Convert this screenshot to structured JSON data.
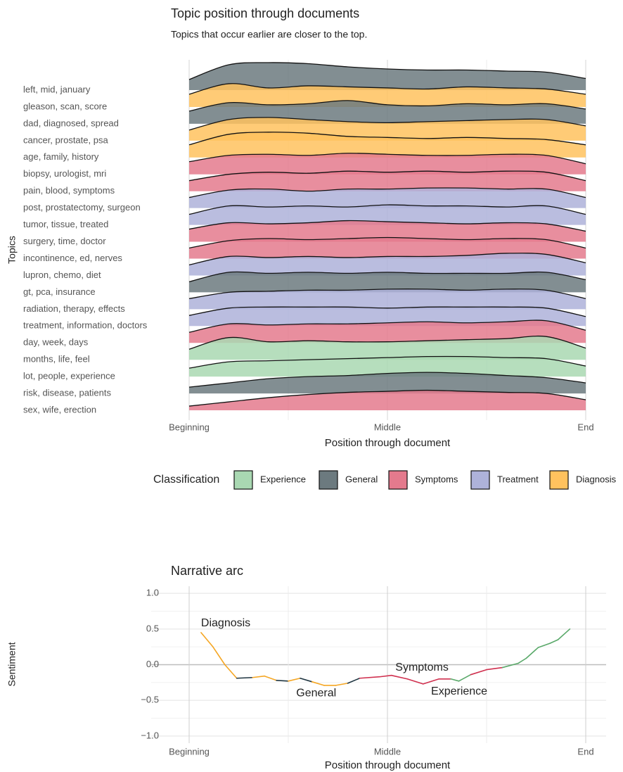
{
  "chart_data": [
    {
      "type": "ridgeline",
      "title": "Topic position through documents",
      "subtitle": "Topics that occur earlier are closer to the top.",
      "y_label": "Topics",
      "x_label": "Position through document",
      "xlim": [
        0,
        1
      ],
      "xticks": [
        {
          "value": 0,
          "label": "Beginning"
        },
        {
          "value": 0.5,
          "label": "Middle"
        },
        {
          "value": 1,
          "label": "End"
        }
      ],
      "legend_title": "Classification",
      "classes": [
        {
          "name": "Experience",
          "color": "#a9d8b2"
        },
        {
          "name": "General",
          "color": "#6c7a7f"
        },
        {
          "name": "Symptoms",
          "color": "#e47a8d"
        },
        {
          "name": "Treatment",
          "color": "#aeb2d9"
        },
        {
          "name": "Diagnosis",
          "color": "#ffc25e"
        }
      ],
      "x": [
        0,
        0.1,
        0.2,
        0.3,
        0.4,
        0.5,
        0.6,
        0.7,
        0.8,
        0.9,
        1
      ],
      "series": [
        {
          "name": "left, mid, january",
          "classification": "General",
          "values": [
            0.5,
            1.2,
            1.3,
            1.25,
            1.1,
            1.0,
            0.95,
            0.95,
            0.9,
            0.85,
            0.55
          ]
        },
        {
          "name": "gleason, scan, score",
          "classification": "Diagnosis",
          "values": [
            0.6,
            1.1,
            0.9,
            1.0,
            0.95,
            0.9,
            0.85,
            0.95,
            0.9,
            0.85,
            0.6
          ]
        },
        {
          "name": "dad, diagnosed, spread",
          "classification": "General",
          "values": [
            0.6,
            1.0,
            0.9,
            0.95,
            1.1,
            0.9,
            0.85,
            0.95,
            0.9,
            0.95,
            0.7
          ]
        },
        {
          "name": "cancer, prostate, psa",
          "classification": "Diagnosis",
          "values": [
            0.5,
            1.0,
            1.1,
            1.0,
            0.9,
            0.85,
            0.9,
            0.95,
            1.0,
            1.0,
            0.7
          ]
        },
        {
          "name": "age, family, history",
          "classification": "Diagnosis",
          "values": [
            0.6,
            1.1,
            1.2,
            1.15,
            1.0,
            0.95,
            0.9,
            0.95,
            0.9,
            0.85,
            0.6
          ]
        },
        {
          "name": "biopsy, urologist, mri",
          "classification": "Symptoms",
          "values": [
            0.6,
            0.9,
            0.95,
            0.9,
            1.0,
            0.95,
            0.9,
            0.9,
            0.95,
            0.9,
            0.5
          ]
        },
        {
          "name": "pain, blood, symptoms",
          "classification": "Symptoms",
          "values": [
            0.5,
            0.8,
            0.9,
            0.85,
            0.95,
            0.9,
            0.95,
            0.9,
            0.95,
            0.9,
            0.5
          ]
        },
        {
          "name": "post, prostatectomy, surgeon",
          "classification": "Treatment",
          "values": [
            0.5,
            0.85,
            0.9,
            0.8,
            0.9,
            0.9,
            0.95,
            0.95,
            0.9,
            0.9,
            0.5
          ]
        },
        {
          "name": "tumor, tissue, treated",
          "classification": "Treatment",
          "values": [
            0.5,
            0.9,
            0.85,
            0.9,
            0.85,
            0.95,
            0.9,
            0.9,
            0.85,
            0.9,
            0.5
          ]
        },
        {
          "name": "surgery, time, doctor",
          "classification": "Symptoms",
          "values": [
            0.6,
            0.9,
            0.85,
            0.9,
            1.0,
            0.95,
            0.9,
            0.85,
            0.9,
            0.85,
            0.5
          ]
        },
        {
          "name": "incontinence, ed, nerves",
          "classification": "Symptoms",
          "values": [
            0.5,
            0.85,
            0.95,
            0.9,
            0.95,
            1.0,
            0.95,
            0.9,
            0.95,
            0.9,
            0.5
          ]
        },
        {
          "name": "lupron, chemo, diet",
          "classification": "Treatment",
          "values": [
            0.5,
            0.9,
            0.85,
            0.9,
            0.85,
            0.9,
            0.9,
            0.95,
            1.05,
            1.0,
            0.6
          ]
        },
        {
          "name": "gt, pca, insurance",
          "classification": "General",
          "values": [
            0.5,
            0.95,
            0.9,
            0.95,
            0.9,
            0.95,
            0.9,
            0.9,
            0.9,
            0.95,
            0.6
          ]
        },
        {
          "name": "radiation, therapy, effects",
          "classification": "Treatment",
          "values": [
            0.5,
            0.8,
            0.85,
            0.9,
            0.9,
            0.95,
            0.95,
            0.9,
            0.95,
            0.9,
            0.5
          ]
        },
        {
          "name": "treatment, information, doctors",
          "classification": "Treatment",
          "values": [
            0.5,
            0.85,
            0.9,
            0.9,
            0.9,
            0.85,
            0.9,
            0.9,
            0.9,
            0.85,
            0.45
          ]
        },
        {
          "name": "day, week, days",
          "classification": "Symptoms",
          "values": [
            0.5,
            0.9,
            0.85,
            0.9,
            0.9,
            0.95,
            1.0,
            0.95,
            1.0,
            1.05,
            0.6
          ]
        },
        {
          "name": "months, life, feel",
          "classification": "Experience",
          "values": [
            0.5,
            1.05,
            0.85,
            0.9,
            0.85,
            0.85,
            0.9,
            0.95,
            1.0,
            1.1,
            0.55
          ]
        },
        {
          "name": "lot, people, experience",
          "classification": "Experience",
          "values": [
            0.4,
            0.7,
            0.75,
            0.8,
            0.85,
            0.9,
            0.95,
            0.95,
            0.9,
            0.85,
            0.5
          ]
        },
        {
          "name": "risk, disease, patients",
          "classification": "General",
          "values": [
            0.3,
            0.5,
            0.7,
            0.8,
            0.85,
            0.95,
            1.0,
            0.95,
            0.85,
            0.75,
            0.5
          ]
        },
        {
          "name": "sex, wife, erection",
          "classification": "Symptoms",
          "values": [
            0.2,
            0.4,
            0.6,
            0.75,
            0.85,
            0.9,
            0.95,
            0.9,
            0.85,
            0.8,
            0.5
          ]
        }
      ]
    },
    {
      "type": "line",
      "title": "Narrative arc",
      "y_label": "Sentiment",
      "x_label": "Position through document",
      "xlim": [
        0,
        1
      ],
      "xticks": [
        {
          "value": 0,
          "label": "Beginning"
        },
        {
          "value": 0.5,
          "label": "Middle"
        },
        {
          "value": 1,
          "label": "End"
        }
      ],
      "ylim": [
        -1.1,
        1.1
      ],
      "yticks": [
        {
          "value": -1,
          "label": "−1.0"
        },
        {
          "value": -0.5,
          "label": "−0.5"
        },
        {
          "value": 0,
          "label": "0.0"
        },
        0.5,
        {
          "value": 1,
          "label": "1.0"
        }
      ],
      "palette": {
        "Diagnosis": "#f5a623",
        "General": "#1f3541",
        "Symptoms": "#d0304f",
        "Experience": "#5aa96a"
      },
      "x": [
        0.03,
        0.06,
        0.09,
        0.12,
        0.16,
        0.19,
        0.22,
        0.25,
        0.28,
        0.31,
        0.34,
        0.37,
        0.4,
        0.43,
        0.48,
        0.51,
        0.55,
        0.59,
        0.63,
        0.66,
        0.68,
        0.71,
        0.75,
        0.79,
        0.83,
        0.85,
        0.88,
        0.91,
        0.93,
        0.96
      ],
      "values": [
        0.45,
        0.25,
        0.0,
        -0.19,
        -0.18,
        -0.16,
        -0.22,
        -0.23,
        -0.19,
        -0.24,
        -0.29,
        -0.29,
        -0.26,
        -0.19,
        -0.17,
        -0.15,
        -0.2,
        -0.27,
        -0.2,
        -0.2,
        -0.23,
        -0.14,
        -0.07,
        -0.04,
        0.02,
        0.09,
        0.24,
        0.3,
        0.35,
        0.5
      ],
      "classes": [
        "Diagnosis",
        "Diagnosis",
        "Diagnosis",
        "General",
        "Diagnosis",
        "Diagnosis",
        "General",
        "Diagnosis",
        "General",
        "Diagnosis",
        "Diagnosis",
        "Diagnosis",
        "General",
        "Symptoms",
        "Symptoms",
        "Symptoms",
        "Symptoms",
        "Symptoms",
        "Symptoms",
        "Experience",
        "Experience",
        "Symptoms",
        "Symptoms",
        "Experience",
        "Experience",
        "Experience",
        "Experience",
        "Experience",
        "Experience",
        "Experience"
      ],
      "annotations": [
        {
          "text": "Diagnosis",
          "x": 0.03,
          "y": 0.58
        },
        {
          "text": "General",
          "x": 0.27,
          "y": -0.4
        },
        {
          "text": "Symptoms",
          "x": 0.52,
          "y": -0.04
        },
        {
          "text": "Experience",
          "x": 0.61,
          "y": -0.38
        }
      ]
    }
  ]
}
